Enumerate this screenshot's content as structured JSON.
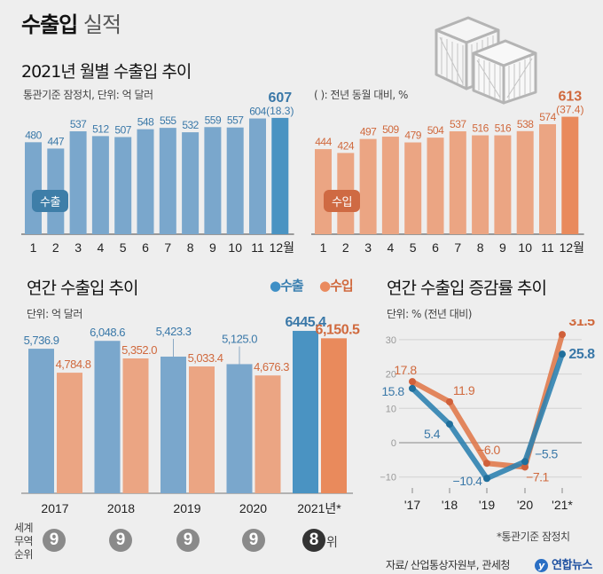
{
  "header": {
    "title_bold": "수출입",
    "title_light": "실적"
  },
  "monthly": {
    "title": "2021년 월별 수출입 추이",
    "note_left": "통관기준 잠정치, 단위: 억 달러",
    "note_right": "( ): 전년 동월 대비, %",
    "export_badge": "수출",
    "import_badge": "수입"
  },
  "annual": {
    "title": "연간 수출입 추이",
    "unit": "단위: 억 달러",
    "legend_export": "수출",
    "legend_import": "수입",
    "rank_label": [
      "세계",
      "무역",
      "순위"
    ],
    "ranks": [
      "9",
      "9",
      "9",
      "9",
      "8"
    ],
    "rank_suffix": "위"
  },
  "growth": {
    "title": "연간 수출입 증감률 추이",
    "unit": "단위: % (전년 대비)",
    "footnote": "*통관기준 잠정치"
  },
  "footer": {
    "source": "자료/ 산업통상자원부, 관세청",
    "logo_text": "연합뉴스"
  },
  "colors": {
    "export_bar": "#7aa7cc",
    "export_highlight": "#4a93c2",
    "export_text": "#3a78a8",
    "import_bar": "#eba583",
    "import_highlight": "#e98a5c",
    "import_text": "#d0693d",
    "export_line": "#2f82b0",
    "import_line": "#e07a4c",
    "rank_circle": "#8a8a8a",
    "rank_circle_highlight": "#333333"
  },
  "chart_data": [
    {
      "type": "bar",
      "title": "2021년 월별 수출입 추이 - 수출",
      "categories": [
        "1",
        "2",
        "3",
        "4",
        "5",
        "6",
        "7",
        "8",
        "9",
        "10",
        "11",
        "12월"
      ],
      "values": [
        480,
        447,
        537,
        512,
        507,
        548,
        555,
        532,
        559,
        557,
        604,
        607
      ],
      "highlight": {
        "index": 11,
        "value_label": "607",
        "yoy_label": "(18.3)"
      },
      "ylabel": "억 달러",
      "ylim": [
        0,
        620
      ]
    },
    {
      "type": "bar",
      "title": "2021년 월별 수출입 추이 - 수입",
      "categories": [
        "1",
        "2",
        "3",
        "4",
        "5",
        "6",
        "7",
        "8",
        "9",
        "10",
        "11",
        "12월"
      ],
      "values": [
        444,
        424,
        497,
        509,
        479,
        504,
        537,
        516,
        516,
        538,
        574,
        613
      ],
      "highlight": {
        "index": 11,
        "value_label": "613",
        "yoy_label": "(37.4)"
      },
      "ylabel": "억 달러",
      "ylim": [
        0,
        620
      ]
    },
    {
      "type": "bar",
      "title": "연간 수출입 추이",
      "categories": [
        "2017",
        "2018",
        "2019",
        "2020",
        "2021년*"
      ],
      "series": [
        {
          "name": "수출",
          "values": [
            5736.9,
            6048.6,
            5423.3,
            5125.0,
            6445.4
          ],
          "labels": [
            "5,736.9",
            "6,048.6",
            "5,423.3",
            "5,125.0",
            "6445.4"
          ]
        },
        {
          "name": "수입",
          "values": [
            4784.8,
            5352.0,
            5033.4,
            4676.3,
            6150.5
          ],
          "labels": [
            "4,784.8",
            "5,352.0",
            "5,033.4",
            "4,676.3",
            "6,150.5"
          ]
        }
      ],
      "ylabel": "억 달러",
      "legend": "top-right"
    },
    {
      "type": "line",
      "title": "연간 수출입 증감률 추이",
      "x": [
        "'17",
        "'18",
        "'19",
        "'20",
        "'21*"
      ],
      "series": [
        {
          "name": "수출",
          "values": [
            15.8,
            5.4,
            -10.4,
            -5.5,
            25.8
          ],
          "labels": [
            "15.8",
            "5.4",
            "−10.4",
            "−5.5",
            "25.8"
          ]
        },
        {
          "name": "수입",
          "values": [
            17.8,
            11.9,
            -6.0,
            -7.1,
            31.5
          ],
          "labels": [
            "17.8",
            "11.9",
            "−6.0",
            "−7.1",
            "31.5"
          ]
        }
      ],
      "yticks": [
        "30",
        "20",
        "10",
        "0",
        "−10"
      ],
      "ytick_values": [
        30,
        20,
        10,
        0,
        -10
      ],
      "ylim": [
        -13,
        33
      ],
      "ylabel": "%",
      "grid": true
    }
  ]
}
